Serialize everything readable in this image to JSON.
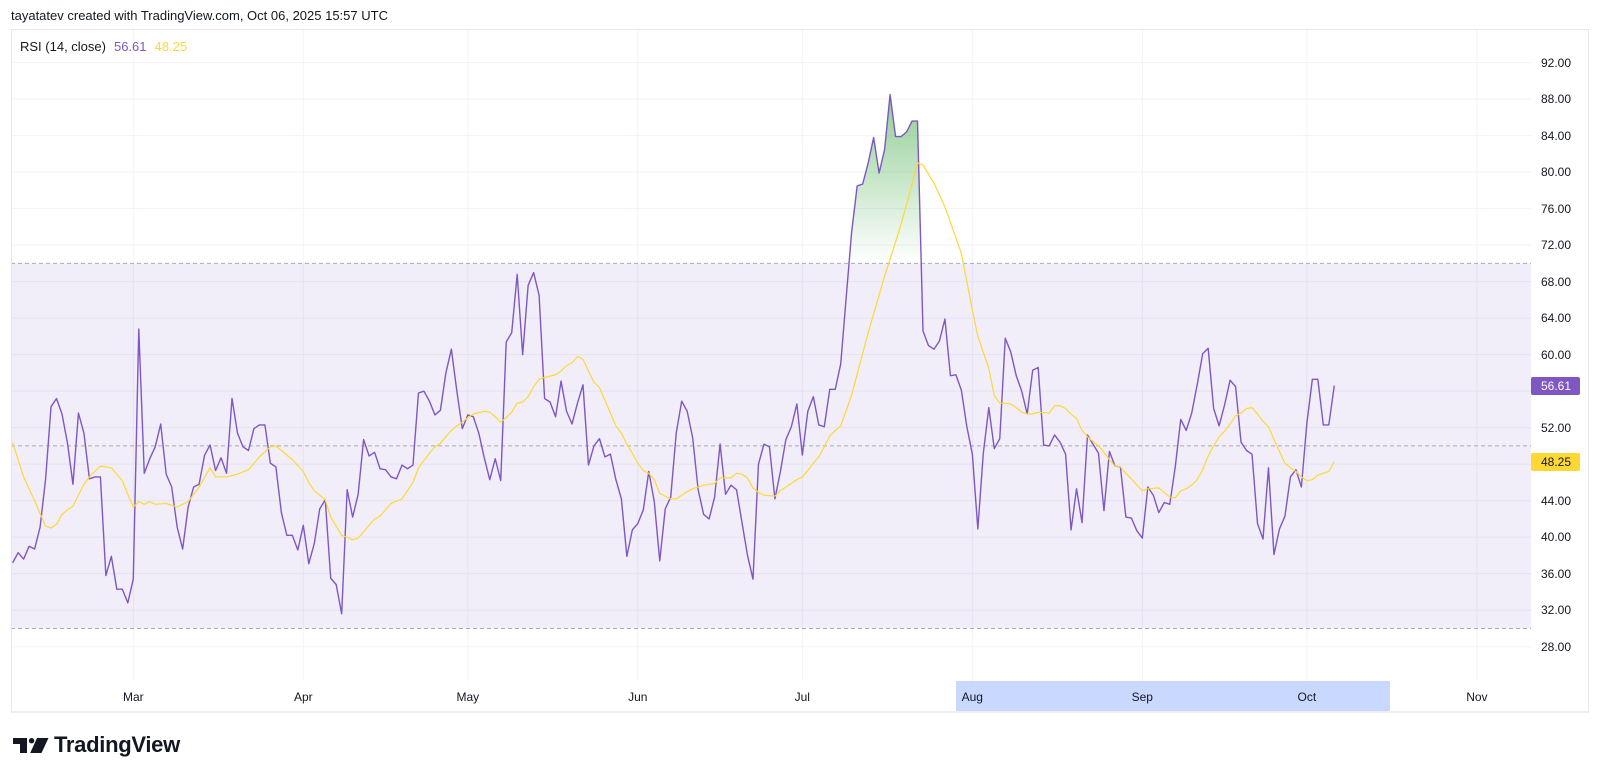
{
  "header": {
    "attribution": "tayatatev created with TradingView.com, Oct 06, 2025 15:57 UTC"
  },
  "legend": {
    "title": "RSI (14, close)",
    "rsi_value": "56.61",
    "ma_value": "48.25"
  },
  "price_axis": {
    "labels": [
      "92.00",
      "88.00",
      "84.00",
      "80.00",
      "76.00",
      "72.00",
      "68.00",
      "64.00",
      "60.00",
      "56.00",
      "52.00",
      "48.00",
      "44.00",
      "40.00",
      "36.00",
      "32.00",
      "28.00"
    ],
    "rsi_badge": "56.61",
    "ma_badge": "48.25"
  },
  "time_axis": {
    "ticks": [
      {
        "label": "Mar",
        "day": 22
      },
      {
        "label": "Apr",
        "day": 53
      },
      {
        "label": "May",
        "day": 83
      },
      {
        "label": "Jun",
        "day": 114
      },
      {
        "label": "Jul",
        "day": 144
      },
      {
        "label": "Aug",
        "day": 175
      },
      {
        "label": "Sep",
        "day": 206
      },
      {
        "label": "Oct",
        "day": 236
      },
      {
        "label": "Nov",
        "day": 267
      }
    ],
    "highlight": {
      "from_day": 172.0,
      "to_day": 251.2
    }
  },
  "footer": {
    "brand": "TradingView",
    "logo_icon": "tradingview-logo-icon"
  },
  "colors": {
    "rsi": "#7E57C2",
    "ma": "#FDD835",
    "band": "rgba(126,87,194,0.10)",
    "level_line": "#9598A1",
    "overbought_fill": "#4CAF50",
    "grid": "#F0F3FA",
    "highlight": "#C9D8FF",
    "text": "#131722",
    "badge_rsi_text": "#FFFFFF",
    "badge_ma_text": "#131722"
  },
  "chart_data": {
    "type": "line",
    "title": "RSI (14, close)",
    "xlabel": "",
    "ylabel": "",
    "x_start": "2025-02-07",
    "x_interval": "1D",
    "xlim_days": [
      -0.3,
      276.87
    ],
    "ylim": [
      24.24,
      95.69
    ],
    "yticks": [
      92,
      88,
      84,
      80,
      76,
      72,
      68,
      64,
      60,
      56,
      52,
      48,
      44,
      40,
      36,
      32,
      28
    ],
    "xtick_labels": [
      "Mar",
      "Apr",
      "May",
      "Jun",
      "Jul",
      "Aug",
      "Sep",
      "Oct",
      "Nov"
    ],
    "grid": true,
    "legend_position": "top-left",
    "levels": {
      "overbought": 70,
      "middle": 50,
      "oversold": 30
    },
    "last_values": {
      "rsi": 56.61,
      "ma": 48.25
    },
    "series": [
      {
        "name": "RSI (14, close)",
        "color": "#7E57C2",
        "values": [
          37.2,
          38.3,
          37.6,
          39.0,
          38.7,
          41.1,
          46.3,
          54.3,
          55.2,
          53.5,
          50.3,
          45.8,
          53.6,
          51.4,
          46.4,
          46.6,
          46.6,
          35.8,
          37.9,
          34.3,
          34.3,
          32.8,
          35.4,
          62.8,
          47.0,
          48.6,
          49.9,
          52.4,
          46.9,
          45.5,
          41.1,
          38.7,
          43.3,
          45.5,
          45.8,
          49.0,
          50.1,
          47.3,
          48.7,
          47.0,
          55.2,
          51.4,
          49.9,
          49.5,
          51.9,
          52.3,
          52.3,
          48.1,
          47.7,
          42.7,
          40.2,
          40.2,
          38.6,
          41.3,
          37.1,
          39.3,
          43.1,
          44.1,
          35.5,
          34.8,
          31.6,
          45.2,
          42.2,
          44.7,
          50.7,
          48.9,
          49.3,
          47.5,
          47.4,
          46.6,
          46.4,
          47.9,
          47.5,
          47.9,
          55.8,
          56.0,
          54.9,
          53.4,
          53.9,
          58.0,
          60.6,
          56.0,
          51.9,
          53.4,
          53.2,
          51.4,
          48.7,
          46.3,
          48.6,
          46.2,
          61.4,
          62.4,
          68.8,
          60.0,
          67.6,
          69.0,
          66.5,
          55.2,
          54.8,
          53.2,
          57.1,
          53.8,
          52.4,
          54.7,
          56.7,
          47.9,
          50.0,
          50.8,
          48.8,
          49.1,
          46.3,
          44.2,
          37.9,
          40.8,
          41.5,
          43.0,
          47.2,
          43.9,
          37.4,
          43.1,
          44.4,
          51.4,
          54.9,
          53.8,
          50.9,
          45.2,
          42.5,
          42.0,
          44.4,
          50.2,
          44.7,
          45.7,
          45.2,
          41.6,
          38.0,
          35.4,
          48.0,
          50.2,
          49.9,
          44.2,
          47.2,
          50.7,
          52.1,
          54.6,
          49.0,
          53.8,
          55.4,
          52.3,
          52.1,
          56.2,
          56.2,
          59.0,
          66.3,
          73.5,
          78.5,
          78.7,
          81.0,
          83.8,
          79.9,
          82.5,
          88.5,
          83.9,
          83.9,
          84.4,
          85.6,
          85.6,
          62.6,
          61.0,
          60.6,
          61.5,
          63.9,
          57.7,
          57.8,
          56.1,
          52.1,
          49.1,
          40.9,
          49.2,
          54.2,
          49.7,
          50.8,
          61.8,
          60.3,
          57.7,
          56.0,
          53.5,
          58.3,
          58.6,
          50.1,
          50.0,
          51.2,
          50.4,
          49.1,
          40.8,
          45.3,
          41.6,
          51.2,
          50.2,
          49.2,
          42.9,
          49.4,
          47.8,
          47.7,
          42.2,
          42.1,
          40.7,
          39.9,
          45.5,
          44.6,
          42.7,
          43.8,
          43.6,
          47.7,
          52.9,
          51.7,
          53.6,
          56.7,
          60.1,
          60.7,
          54.1,
          52.2,
          54.5,
          57.2,
          56.5,
          50.4,
          49.5,
          49.1,
          41.5,
          39.8,
          47.6,
          38.1,
          40.9,
          42.3,
          46.6,
          47.4,
          45.5,
          52.5,
          57.3,
          57.3,
          52.3,
          52.3,
          56.61
        ]
      },
      {
        "name": "RSI MA",
        "color": "#FDD835",
        "points_day_value": [
          [
            0,
            50.4
          ],
          [
            2,
            46.6
          ],
          [
            4,
            44.0
          ],
          [
            6,
            41.2
          ],
          [
            7,
            41.0
          ],
          [
            8,
            41.4
          ],
          [
            9,
            42.5
          ],
          [
            10,
            43.0
          ],
          [
            11,
            43.4
          ],
          [
            12,
            44.6
          ],
          [
            13,
            45.8
          ],
          [
            14,
            46.6
          ],
          [
            16,
            47.8
          ],
          [
            18,
            47.6
          ],
          [
            20,
            46.2
          ],
          [
            21,
            44.7
          ],
          [
            22,
            43.3
          ],
          [
            23,
            43.9
          ],
          [
            24,
            43.6
          ],
          [
            25,
            43.9
          ],
          [
            26,
            43.6
          ],
          [
            28,
            43.7
          ],
          [
            30,
            43.3
          ],
          [
            32,
            43.9
          ],
          [
            34,
            45.5
          ],
          [
            36,
            47.6
          ],
          [
            37,
            46.6
          ],
          [
            39,
            46.6
          ],
          [
            41,
            46.9
          ],
          [
            43,
            47.4
          ],
          [
            45,
            48.8
          ],
          [
            47,
            49.9
          ],
          [
            48,
            50.0
          ],
          [
            49,
            49.5
          ],
          [
            51,
            48.5
          ],
          [
            53,
            47.2
          ],
          [
            54,
            46.0
          ],
          [
            55,
            45.1
          ],
          [
            57,
            44.1
          ],
          [
            58,
            42.2
          ],
          [
            60,
            40.2
          ],
          [
            61,
            40.0
          ],
          [
            62,
            39.7
          ],
          [
            63,
            39.9
          ],
          [
            64,
            40.6
          ],
          [
            66,
            42.0
          ],
          [
            67,
            42.3
          ],
          [
            69,
            43.7
          ],
          [
            71,
            44.2
          ],
          [
            73,
            46.0
          ],
          [
            74,
            47.6
          ],
          [
            76,
            49.2
          ],
          [
            77,
            49.9
          ],
          [
            78,
            50.3
          ],
          [
            80,
            51.7
          ],
          [
            81,
            52.2
          ],
          [
            82,
            52.6
          ],
          [
            83,
            53.1
          ],
          [
            84,
            53.5
          ],
          [
            86,
            53.8
          ],
          [
            87,
            53.7
          ],
          [
            88,
            53.2
          ],
          [
            89,
            52.6
          ],
          [
            90,
            53.1
          ],
          [
            91,
            53.7
          ],
          [
            92,
            54.7
          ],
          [
            93,
            54.8
          ],
          [
            94,
            55.4
          ],
          [
            95,
            56.5
          ],
          [
            96,
            57.3
          ],
          [
            97,
            57.5
          ],
          [
            99,
            57.8
          ],
          [
            100,
            58.2
          ],
          [
            101,
            58.8
          ],
          [
            102,
            59.1
          ],
          [
            103,
            59.8
          ],
          [
            104,
            59.5
          ],
          [
            105,
            58.2
          ],
          [
            106,
            57.0
          ],
          [
            107,
            56.4
          ],
          [
            108,
            55.0
          ],
          [
            109,
            53.6
          ],
          [
            110,
            52.2
          ],
          [
            111,
            51.4
          ],
          [
            112,
            50.2
          ],
          [
            113,
            49.2
          ],
          [
            114,
            48.1
          ],
          [
            115,
            47.3
          ],
          [
            116,
            47.0
          ],
          [
            117,
            46.3
          ],
          [
            118,
            44.8
          ],
          [
            119,
            44.5
          ],
          [
            120,
            44.2
          ],
          [
            121,
            44.2
          ],
          [
            122,
            44.6
          ],
          [
            123,
            45.0
          ],
          [
            124,
            45.3
          ],
          [
            126,
            45.7
          ],
          [
            128,
            45.9
          ],
          [
            129,
            46.5
          ],
          [
            131,
            46.5
          ],
          [
            132,
            47.0
          ],
          [
            133,
            46.9
          ],
          [
            134,
            46.5
          ],
          [
            135,
            45.4
          ],
          [
            136,
            44.9
          ],
          [
            137,
            44.6
          ],
          [
            139,
            44.5
          ],
          [
            140,
            45.1
          ],
          [
            141,
            45.5
          ],
          [
            142,
            45.9
          ],
          [
            143,
            46.3
          ],
          [
            144,
            46.6
          ],
          [
            145,
            47.3
          ],
          [
            146,
            48.1
          ],
          [
            147,
            48.8
          ],
          [
            148,
            49.9
          ],
          [
            149,
            51.1
          ],
          [
            150,
            51.7
          ],
          [
            151,
            52.2
          ],
          [
            153,
            55.6
          ],
          [
            156,
            62.4
          ],
          [
            159,
            68.6
          ],
          [
            161.5,
            73.3
          ],
          [
            163,
            76.4
          ],
          [
            165,
            81.0
          ],
          [
            166,
            80.8
          ],
          [
            168,
            78.8
          ],
          [
            170,
            76.2
          ],
          [
            173,
            71.1
          ],
          [
            175,
            64.9
          ],
          [
            176,
            62.0
          ],
          [
            178,
            58.5
          ],
          [
            179,
            55.5
          ],
          [
            180,
            54.7
          ],
          [
            182,
            54.6
          ],
          [
            183,
            54.2
          ],
          [
            184,
            53.7
          ],
          [
            185,
            53.5
          ],
          [
            186,
            53.5
          ],
          [
            187,
            53.7
          ],
          [
            189,
            53.6
          ],
          [
            190,
            54.4
          ],
          [
            191,
            54.4
          ],
          [
            192,
            54.1
          ],
          [
            193,
            53.5
          ],
          [
            194,
            53.0
          ],
          [
            195,
            51.7
          ],
          [
            196,
            51.0
          ],
          [
            197,
            50.5
          ],
          [
            198,
            50.0
          ],
          [
            199,
            49.3
          ],
          [
            200,
            48.5
          ],
          [
            201,
            47.8
          ],
          [
            202,
            47.7
          ],
          [
            203,
            47.0
          ],
          [
            204,
            46.4
          ],
          [
            205.5,
            45.4
          ],
          [
            206,
            45.1
          ],
          [
            207,
            45.3
          ],
          [
            209,
            45.4
          ],
          [
            211,
            44.4
          ],
          [
            212,
            44.3
          ],
          [
            213,
            45.1
          ],
          [
            214,
            45.3
          ],
          [
            215,
            45.7
          ],
          [
            216,
            46.3
          ],
          [
            217,
            47.4
          ],
          [
            218,
            48.9
          ],
          [
            219,
            50.0
          ],
          [
            220,
            51.0
          ],
          [
            221,
            51.6
          ],
          [
            222,
            52.4
          ],
          [
            223,
            53.3
          ],
          [
            224,
            53.6
          ],
          [
            225,
            54.1
          ],
          [
            226,
            54.2
          ],
          [
            227,
            53.5
          ],
          [
            228,
            52.7
          ],
          [
            229,
            52.1
          ],
          [
            230,
            50.7
          ],
          [
            231,
            49.4
          ],
          [
            232,
            48.1
          ],
          [
            233,
            47.6
          ],
          [
            234,
            47.2
          ],
          [
            235,
            46.6
          ],
          [
            236,
            46.2
          ],
          [
            237,
            46.3
          ],
          [
            238,
            46.8
          ],
          [
            239,
            47.0
          ],
          [
            240,
            47.2
          ],
          [
            241,
            48.25
          ]
        ]
      }
    ]
  }
}
